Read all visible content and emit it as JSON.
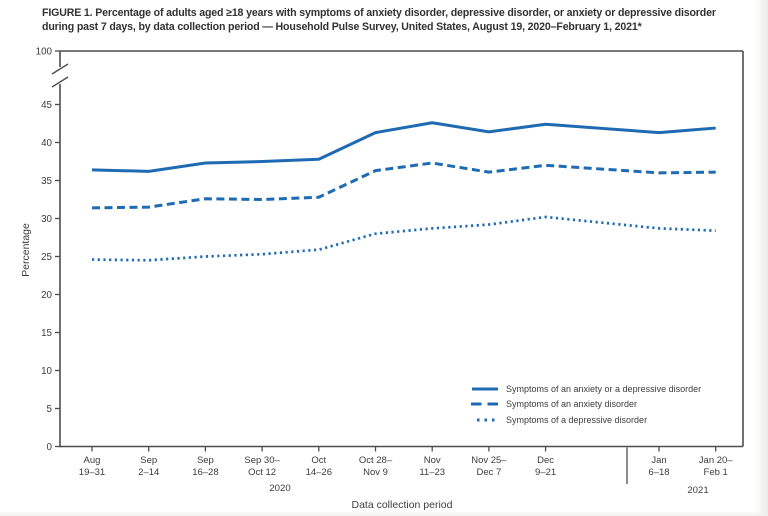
{
  "figure": {
    "title_line1": "FIGURE 1. Percentage of adults aged ≥18 years with symptoms of anxiety disorder, depressive disorder, or anxiety or depressive disorder",
    "title_line2": "during past 7 days, by data collection period — Household Pulse Survey, United States, August 19, 2020–February 1, 2021*"
  },
  "chart_data": {
    "type": "line",
    "title": "FIGURE 1. Percentage of adults aged ≥18 years with symptoms of anxiety disorder, depressive disorder, or anxiety or depressive disorder during past 7 days, by data collection period — Household Pulse Survey, United States, August 19, 2020–February 1, 2021*",
    "xlabel": "Data collection period",
    "ylabel": "Percentage",
    "ylim": [
      0,
      45
    ],
    "y_axis_break_value_above": 100,
    "y_ticks": [
      0,
      5,
      10,
      15,
      20,
      25,
      30,
      35,
      40,
      45
    ],
    "y_top_tick": "100",
    "grid": "off",
    "legend_position": "inside lower right",
    "categories": [
      "Aug 19–31",
      "Sep 2–14",
      "Sep 16–28",
      "Sep 30–Oct 12",
      "Oct 14–26",
      "Oct 28–Nov 9",
      "Nov 11–23",
      "Nov 25–Dec 7",
      "Dec 9–21",
      "Jan 6–18",
      "Jan 20–Feb 1"
    ],
    "category_label_lines": [
      [
        "Aug",
        "19–31"
      ],
      [
        "Sep",
        "2–14"
      ],
      [
        "Sep",
        "16–28"
      ],
      [
        "Sep 30–",
        "Oct 12"
      ],
      [
        "Oct",
        "14–26"
      ],
      [
        "Oct 28–",
        "Nov 9"
      ],
      [
        "Nov",
        "11–23"
      ],
      [
        "Nov 25–",
        "Dec 7"
      ],
      [
        "Dec",
        "9–21"
      ],
      [
        "Jan",
        "6–18"
      ],
      [
        "Jan 20–",
        "Feb 1"
      ]
    ],
    "timeline_slots": [
      0,
      1,
      2,
      3,
      4,
      5,
      6,
      7,
      8,
      10,
      11
    ],
    "year_labels": [
      "2020",
      "2021"
    ],
    "series": [
      {
        "name": "Symptoms of an anxiety or a depressive disorder",
        "style": "solid",
        "values": [
          36.4,
          36.2,
          37.3,
          37.5,
          37.8,
          41.3,
          42.6,
          41.4,
          42.4,
          41.3,
          41.9
        ]
      },
      {
        "name": "Symptoms of an anxiety disorder",
        "style": "dashed",
        "values": [
          31.4,
          31.5,
          32.6,
          32.5,
          32.8,
          36.3,
          37.3,
          36.1,
          37.0,
          36.0,
          36.1
        ]
      },
      {
        "name": "Symptoms of a depressive disorder",
        "style": "dotted",
        "values": [
          24.6,
          24.5,
          25.0,
          25.3,
          25.9,
          28.0,
          28.7,
          29.2,
          30.2,
          28.7,
          28.4
        ]
      }
    ],
    "colors": {
      "line_blue": "#1e6bb4",
      "axis": "#4d4d4b",
      "text": "#3c3c3c"
    }
  }
}
